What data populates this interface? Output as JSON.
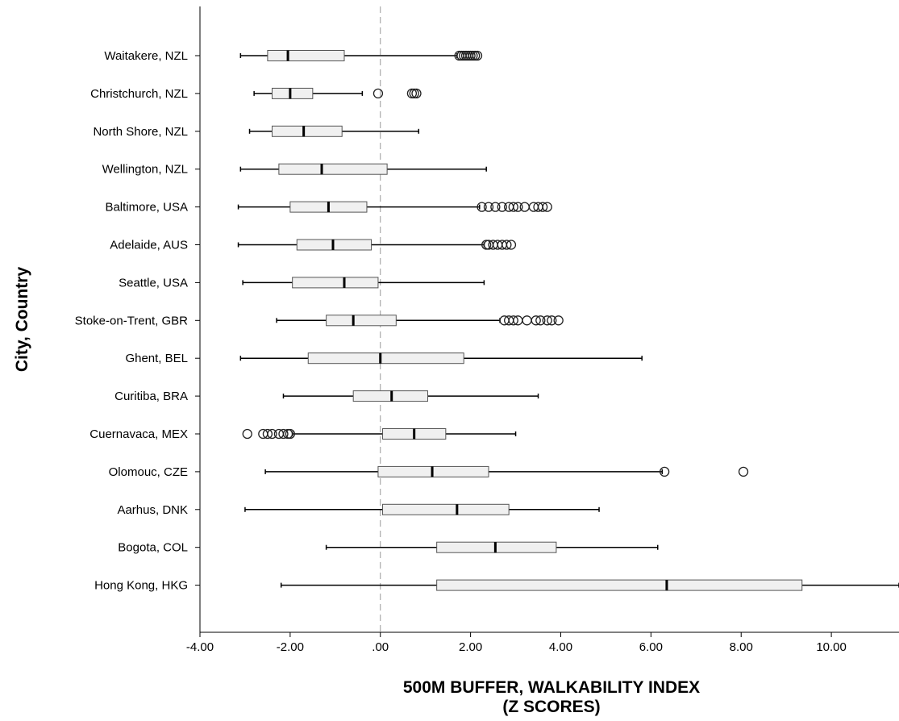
{
  "chart_data": {
    "type": "boxplot",
    "orientation": "horizontal",
    "xlabel": [
      "500M BUFFER, WALKABILITY INDEX",
      "(Z SCORES)"
    ],
    "ylabel": "City, Country",
    "xlim": [
      -4,
      11.5
    ],
    "xticks": [
      -4,
      -2,
      0,
      2,
      4,
      6,
      8,
      10
    ],
    "xtick_labels": [
      "-4.00",
      "-2.00",
      ".00",
      "2.00",
      "4.00",
      "6.00",
      "8.00",
      "10.00"
    ],
    "reference_line": 0,
    "reference_line_style": "dashed",
    "box_color": "#f0f0f0",
    "line_color": "#000000",
    "categories": [
      "Waitakere, NZL",
      "Christchurch, NZL",
      "North Shore, NZL",
      "Wellington, NZL",
      "Baltimore, USA",
      "Adelaide, AUS",
      "Seattle, USA",
      "Stoke-on-Trent, GBR",
      "Ghent, BEL",
      "Curitiba, BRA",
      "Cuernavaca, MEX",
      "Olomouc, CZE",
      "Aarhus, DNK",
      "Bogota, COL",
      "Hong Kong, HKG"
    ],
    "boxes": [
      {
        "whisker_low": -3.1,
        "q1": -2.5,
        "median": -2.05,
        "q3": -0.8,
        "whisker_high": 1.7,
        "outliers": [
          1.75,
          1.8,
          1.85,
          1.9,
          1.95,
          2.0,
          2.05,
          2.1,
          2.15
        ]
      },
      {
        "whisker_low": -2.8,
        "q1": -2.4,
        "median": -2.0,
        "q3": -1.5,
        "whisker_high": -0.4,
        "outliers": [
          -0.05,
          0.7,
          0.75,
          0.8
        ]
      },
      {
        "whisker_low": -2.9,
        "q1": -2.4,
        "median": -1.7,
        "q3": -0.85,
        "whisker_high": 0.85,
        "outliers": []
      },
      {
        "whisker_low": -3.1,
        "q1": -2.25,
        "median": -1.3,
        "q3": 0.15,
        "whisker_high": 2.35,
        "outliers": []
      },
      {
        "whisker_low": -3.15,
        "q1": -2.0,
        "median": -1.15,
        "q3": -0.3,
        "whisker_high": 2.2,
        "outliers": [
          2.25,
          2.4,
          2.55,
          2.7,
          2.85,
          2.95,
          3.05,
          3.2,
          3.4,
          3.5,
          3.6,
          3.7
        ]
      },
      {
        "whisker_low": -3.15,
        "q1": -1.85,
        "median": -1.05,
        "q3": -0.2,
        "whisker_high": 2.3,
        "outliers": [
          2.35,
          2.4,
          2.5,
          2.6,
          2.7,
          2.8,
          2.9
        ]
      },
      {
        "whisker_low": -3.05,
        "q1": -1.95,
        "median": -0.8,
        "q3": -0.05,
        "whisker_high": 2.3,
        "outliers": []
      },
      {
        "whisker_low": -2.3,
        "q1": -1.2,
        "median": -0.6,
        "q3": 0.35,
        "whisker_high": 2.65,
        "outliers": [
          2.75,
          2.85,
          2.95,
          3.05,
          3.25,
          3.45,
          3.55,
          3.7,
          3.8,
          3.95
        ]
      },
      {
        "whisker_low": -3.1,
        "q1": -1.6,
        "median": 0.0,
        "q3": 1.85,
        "whisker_high": 5.8,
        "outliers": []
      },
      {
        "whisker_low": -2.15,
        "q1": -0.6,
        "median": 0.25,
        "q3": 1.05,
        "whisker_high": 3.5,
        "outliers": []
      },
      {
        "whisker_low": -1.95,
        "q1": 0.05,
        "median": 0.75,
        "q3": 1.45,
        "whisker_high": 3.0,
        "outliers": [
          -2.95,
          -2.6,
          -2.5,
          -2.4,
          -2.25,
          -2.15,
          -2.05,
          -2.0
        ]
      },
      {
        "whisker_low": -2.55,
        "q1": -0.05,
        "median": 1.15,
        "q3": 2.4,
        "whisker_high": 6.25,
        "outliers": [
          6.3,
          8.05
        ]
      },
      {
        "whisker_low": -3.0,
        "q1": 0.05,
        "median": 1.7,
        "q3": 2.85,
        "whisker_high": 4.85,
        "outliers": []
      },
      {
        "whisker_low": -1.2,
        "q1": 1.25,
        "median": 2.55,
        "q3": 3.9,
        "whisker_high": 6.15,
        "outliers": []
      },
      {
        "whisker_low": -2.2,
        "q1": 1.25,
        "median": 6.35,
        "q3": 9.35,
        "whisker_high": 11.5,
        "outliers": []
      }
    ]
  }
}
